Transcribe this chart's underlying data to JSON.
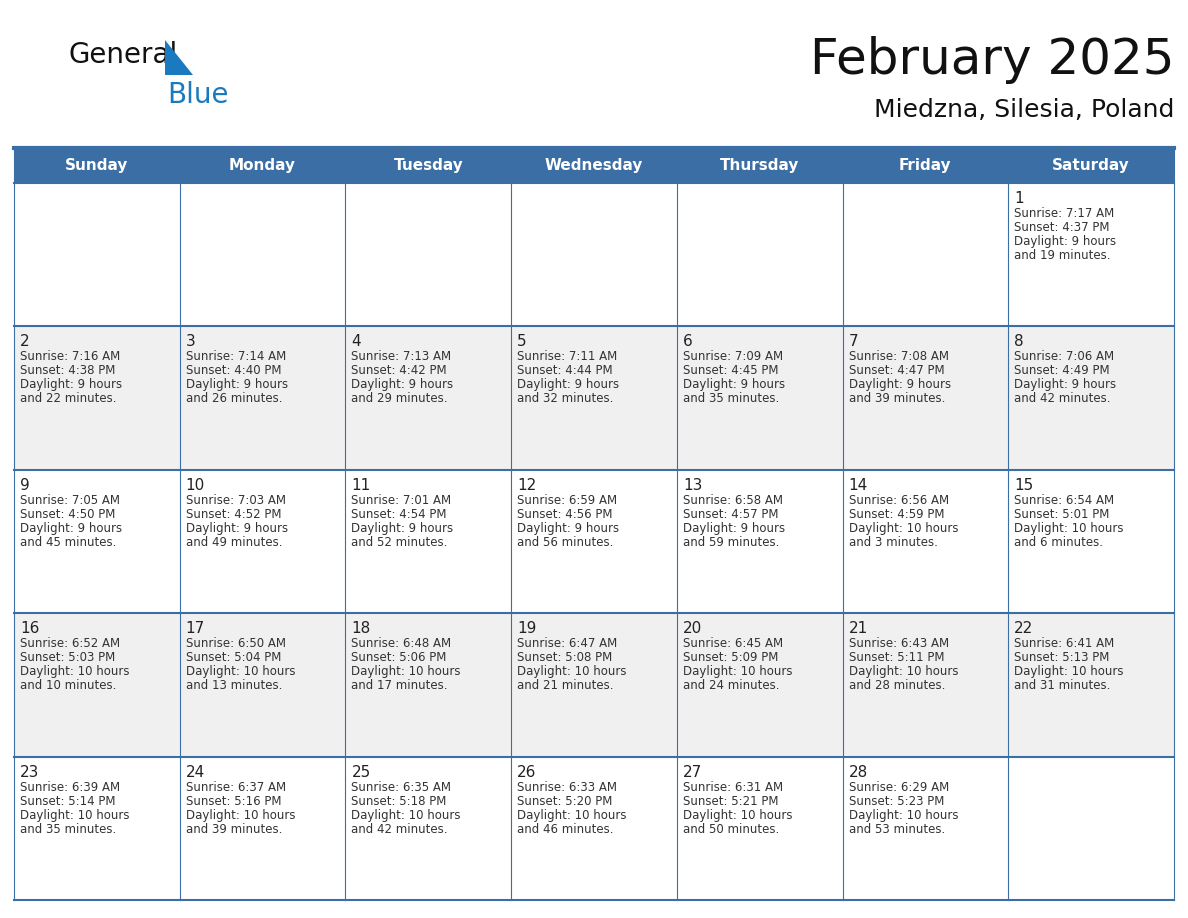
{
  "title": "February 2025",
  "subtitle": "Miedzna, Silesia, Poland",
  "days_of_week": [
    "Sunday",
    "Monday",
    "Tuesday",
    "Wednesday",
    "Thursday",
    "Friday",
    "Saturday"
  ],
  "header_bg": "#3a6ea5",
  "header_text": "#ffffff",
  "cell_bg_odd": "#f0f0f0",
  "cell_bg_even": "#ffffff",
  "day_number_color": "#222222",
  "info_text_color": "#333333",
  "border_color": "#3a6ea5",
  "title_color": "#111111",
  "subtitle_color": "#111111",
  "logo_text_color": "#111111",
  "logo_blue_color": "#1a7abf",
  "weeks": [
    [
      {
        "day": null,
        "info": ""
      },
      {
        "day": null,
        "info": ""
      },
      {
        "day": null,
        "info": ""
      },
      {
        "day": null,
        "info": ""
      },
      {
        "day": null,
        "info": ""
      },
      {
        "day": null,
        "info": ""
      },
      {
        "day": 1,
        "info": "Sunrise: 7:17 AM\nSunset: 4:37 PM\nDaylight: 9 hours\nand 19 minutes."
      }
    ],
    [
      {
        "day": 2,
        "info": "Sunrise: 7:16 AM\nSunset: 4:38 PM\nDaylight: 9 hours\nand 22 minutes."
      },
      {
        "day": 3,
        "info": "Sunrise: 7:14 AM\nSunset: 4:40 PM\nDaylight: 9 hours\nand 26 minutes."
      },
      {
        "day": 4,
        "info": "Sunrise: 7:13 AM\nSunset: 4:42 PM\nDaylight: 9 hours\nand 29 minutes."
      },
      {
        "day": 5,
        "info": "Sunrise: 7:11 AM\nSunset: 4:44 PM\nDaylight: 9 hours\nand 32 minutes."
      },
      {
        "day": 6,
        "info": "Sunrise: 7:09 AM\nSunset: 4:45 PM\nDaylight: 9 hours\nand 35 minutes."
      },
      {
        "day": 7,
        "info": "Sunrise: 7:08 AM\nSunset: 4:47 PM\nDaylight: 9 hours\nand 39 minutes."
      },
      {
        "day": 8,
        "info": "Sunrise: 7:06 AM\nSunset: 4:49 PM\nDaylight: 9 hours\nand 42 minutes."
      }
    ],
    [
      {
        "day": 9,
        "info": "Sunrise: 7:05 AM\nSunset: 4:50 PM\nDaylight: 9 hours\nand 45 minutes."
      },
      {
        "day": 10,
        "info": "Sunrise: 7:03 AM\nSunset: 4:52 PM\nDaylight: 9 hours\nand 49 minutes."
      },
      {
        "day": 11,
        "info": "Sunrise: 7:01 AM\nSunset: 4:54 PM\nDaylight: 9 hours\nand 52 minutes."
      },
      {
        "day": 12,
        "info": "Sunrise: 6:59 AM\nSunset: 4:56 PM\nDaylight: 9 hours\nand 56 minutes."
      },
      {
        "day": 13,
        "info": "Sunrise: 6:58 AM\nSunset: 4:57 PM\nDaylight: 9 hours\nand 59 minutes."
      },
      {
        "day": 14,
        "info": "Sunrise: 6:56 AM\nSunset: 4:59 PM\nDaylight: 10 hours\nand 3 minutes."
      },
      {
        "day": 15,
        "info": "Sunrise: 6:54 AM\nSunset: 5:01 PM\nDaylight: 10 hours\nand 6 minutes."
      }
    ],
    [
      {
        "day": 16,
        "info": "Sunrise: 6:52 AM\nSunset: 5:03 PM\nDaylight: 10 hours\nand 10 minutes."
      },
      {
        "day": 17,
        "info": "Sunrise: 6:50 AM\nSunset: 5:04 PM\nDaylight: 10 hours\nand 13 minutes."
      },
      {
        "day": 18,
        "info": "Sunrise: 6:48 AM\nSunset: 5:06 PM\nDaylight: 10 hours\nand 17 minutes."
      },
      {
        "day": 19,
        "info": "Sunrise: 6:47 AM\nSunset: 5:08 PM\nDaylight: 10 hours\nand 21 minutes."
      },
      {
        "day": 20,
        "info": "Sunrise: 6:45 AM\nSunset: 5:09 PM\nDaylight: 10 hours\nand 24 minutes."
      },
      {
        "day": 21,
        "info": "Sunrise: 6:43 AM\nSunset: 5:11 PM\nDaylight: 10 hours\nand 28 minutes."
      },
      {
        "day": 22,
        "info": "Sunrise: 6:41 AM\nSunset: 5:13 PM\nDaylight: 10 hours\nand 31 minutes."
      }
    ],
    [
      {
        "day": 23,
        "info": "Sunrise: 6:39 AM\nSunset: 5:14 PM\nDaylight: 10 hours\nand 35 minutes."
      },
      {
        "day": 24,
        "info": "Sunrise: 6:37 AM\nSunset: 5:16 PM\nDaylight: 10 hours\nand 39 minutes."
      },
      {
        "day": 25,
        "info": "Sunrise: 6:35 AM\nSunset: 5:18 PM\nDaylight: 10 hours\nand 42 minutes."
      },
      {
        "day": 26,
        "info": "Sunrise: 6:33 AM\nSunset: 5:20 PM\nDaylight: 10 hours\nand 46 minutes."
      },
      {
        "day": 27,
        "info": "Sunrise: 6:31 AM\nSunset: 5:21 PM\nDaylight: 10 hours\nand 50 minutes."
      },
      {
        "day": 28,
        "info": "Sunrise: 6:29 AM\nSunset: 5:23 PM\nDaylight: 10 hours\nand 53 minutes."
      },
      {
        "day": null,
        "info": ""
      }
    ]
  ]
}
